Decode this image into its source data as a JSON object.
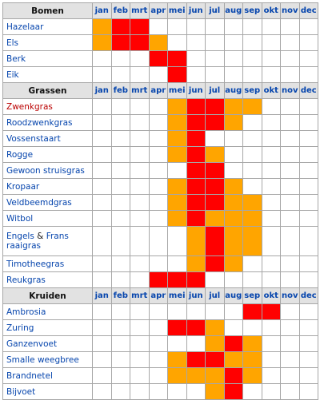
{
  "months": [
    "jan",
    "feb",
    "mrt",
    "apr",
    "mei",
    "jun",
    "jul",
    "aug",
    "sep",
    "okt",
    "nov",
    "dec"
  ],
  "colors": {
    "high": "#ff0000",
    "medium": "#ffa500",
    "none": "#ffffff",
    "link": "#0645ad",
    "red_link": "#ba0000"
  },
  "groups": [
    {
      "title": "Bomen",
      "rows": [
        {
          "name": "Hazelaar",
          "levels": [
            "m",
            "h",
            "h",
            "",
            "",
            "",
            "",
            "",
            "",
            "",
            "",
            ""
          ]
        },
        {
          "name": "Els",
          "levels": [
            "m",
            "h",
            "h",
            "m",
            "",
            "",
            "",
            "",
            "",
            "",
            "",
            ""
          ]
        },
        {
          "name": "Berk",
          "levels": [
            "",
            "",
            "",
            "h",
            "h",
            "",
            "",
            "",
            "",
            "",
            "",
            ""
          ]
        },
        {
          "name": "Eik",
          "levels": [
            "",
            "",
            "",
            "",
            "h",
            "",
            "",
            "",
            "",
            "",
            "",
            ""
          ]
        }
      ]
    },
    {
      "title": "Grassen",
      "rows": [
        {
          "name": "Zwenkgras",
          "red": true,
          "levels": [
            "",
            "",
            "",
            "",
            "m",
            "h",
            "h",
            "m",
            "m",
            "",
            "",
            ""
          ]
        },
        {
          "name": "Roodzwenkgras",
          "levels": [
            "",
            "",
            "",
            "",
            "m",
            "h",
            "h",
            "m",
            "",
            "",
            "",
            ""
          ]
        },
        {
          "name": "Vossenstaart",
          "levels": [
            "",
            "",
            "",
            "",
            "m",
            "h",
            "",
            "",
            "",
            "",
            "",
            ""
          ]
        },
        {
          "name": "Rogge",
          "levels": [
            "",
            "",
            "",
            "",
            "m",
            "h",
            "m",
            "",
            "",
            "",
            "",
            ""
          ]
        },
        {
          "name": "Gewoon struisgras",
          "levels": [
            "",
            "",
            "",
            "",
            "",
            "h",
            "h",
            "",
            "",
            "",
            "",
            ""
          ]
        },
        {
          "name": "Kropaar",
          "levels": [
            "",
            "",
            "",
            "",
            "m",
            "h",
            "h",
            "m",
            "",
            "",
            "",
            ""
          ]
        },
        {
          "name": "Veldbeemdgras",
          "levels": [
            "",
            "",
            "",
            "",
            "m",
            "h",
            "h",
            "m",
            "m",
            "",
            "",
            ""
          ]
        },
        {
          "name": "Witbol",
          "levels": [
            "",
            "",
            "",
            "",
            "m",
            "h",
            "m",
            "m",
            "m",
            "",
            "",
            ""
          ]
        },
        {
          "name": "Engels",
          "amp": "&",
          "name2": "Frans",
          "line2": "raaigras",
          "tall": true,
          "levels": [
            "",
            "",
            "",
            "",
            "",
            "m",
            "h",
            "m",
            "m",
            "",
            "",
            ""
          ]
        },
        {
          "name": "Timotheegras",
          "levels": [
            "",
            "",
            "",
            "",
            "",
            "m",
            "h",
            "m",
            "",
            "",
            "",
            ""
          ]
        },
        {
          "name": "Reukgras",
          "levels": [
            "",
            "",
            "",
            "h",
            "h",
            "h",
            "",
            "",
            "",
            "",
            "",
            ""
          ]
        }
      ]
    },
    {
      "title": "Kruiden",
      "rows": [
        {
          "name": "Ambrosia",
          "levels": [
            "",
            "",
            "",
            "",
            "",
            "",
            "",
            "",
            "h",
            "h",
            "",
            ""
          ]
        },
        {
          "name": "Zuring",
          "levels": [
            "",
            "",
            "",
            "",
            "h",
            "h",
            "m",
            "",
            "",
            "",
            "",
            ""
          ]
        },
        {
          "name": "Ganzenvoet",
          "levels": [
            "",
            "",
            "",
            "",
            "",
            "",
            "m",
            "h",
            "m",
            "",
            "",
            ""
          ]
        },
        {
          "name": "Smalle weegbree",
          "levels": [
            "",
            "",
            "",
            "",
            "m",
            "h",
            "h",
            "m",
            "m",
            "",
            "",
            ""
          ]
        },
        {
          "name": "Brandnetel",
          "levels": [
            "",
            "",
            "",
            "",
            "m",
            "m",
            "m",
            "h",
            "m",
            "",
            "",
            ""
          ]
        },
        {
          "name": "Bijvoet",
          "levels": [
            "",
            "",
            "",
            "",
            "",
            "",
            "m",
            "h",
            "",
            "",
            "",
            ""
          ]
        }
      ]
    }
  ]
}
